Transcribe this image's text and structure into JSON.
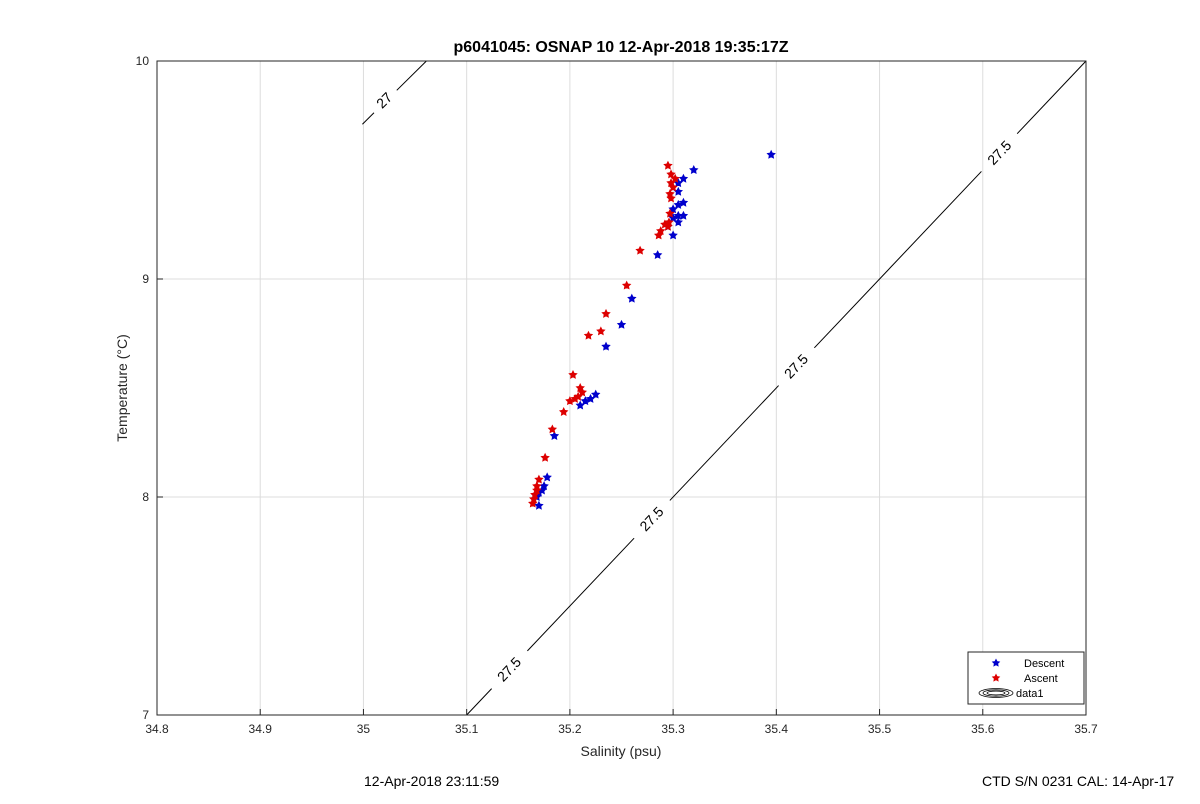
{
  "chart_data": {
    "type": "scatter",
    "title": "p6041045: OSNAP 10 12-Apr-2018 19:35:17Z",
    "xlabel": "Salinity (psu)",
    "ylabel": "Temperature (°C)",
    "xlim": [
      34.8,
      35.7
    ],
    "ylim": [
      7,
      10
    ],
    "x_ticks": [
      "34.8",
      "34.9",
      "35",
      "35.1",
      "35.2",
      "35.3",
      "35.4",
      "35.5",
      "35.6",
      "35.7"
    ],
    "y_ticks": [
      "7",
      "8",
      "9",
      "10"
    ],
    "grid": true,
    "legend_position": "bottom-right",
    "series": [
      {
        "name": "Descent",
        "color": "#0000cc",
        "points": [
          [
            35.395,
            9.57
          ],
          [
            35.32,
            9.5
          ],
          [
            35.31,
            9.46
          ],
          [
            35.305,
            9.44
          ],
          [
            35.305,
            9.4
          ],
          [
            35.31,
            9.35
          ],
          [
            35.305,
            9.34
          ],
          [
            35.3,
            9.32
          ],
          [
            35.31,
            9.29
          ],
          [
            35.305,
            9.29
          ],
          [
            35.3,
            9.28
          ],
          [
            35.305,
            9.26
          ],
          [
            35.295,
            9.24
          ],
          [
            35.3,
            9.2
          ],
          [
            35.285,
            9.11
          ],
          [
            35.26,
            8.91
          ],
          [
            35.25,
            8.79
          ],
          [
            35.235,
            8.69
          ],
          [
            35.225,
            8.47
          ],
          [
            35.22,
            8.45
          ],
          [
            35.215,
            8.44
          ],
          [
            35.21,
            8.42
          ],
          [
            35.185,
            8.28
          ],
          [
            35.178,
            8.09
          ],
          [
            35.175,
            8.05
          ],
          [
            35.173,
            8.03
          ],
          [
            35.17,
            8.02
          ],
          [
            35.168,
            8.0
          ],
          [
            35.17,
            7.96
          ]
        ]
      },
      {
        "name": "Ascent",
        "color": "#dd0000",
        "points": [
          [
            35.295,
            9.52
          ],
          [
            35.298,
            9.48
          ],
          [
            35.302,
            9.46
          ],
          [
            35.298,
            9.44
          ],
          [
            35.3,
            9.42
          ],
          [
            35.297,
            9.39
          ],
          [
            35.298,
            9.37
          ],
          [
            35.297,
            9.3
          ],
          [
            35.296,
            9.26
          ],
          [
            35.292,
            9.25
          ],
          [
            35.295,
            9.24
          ],
          [
            35.288,
            9.22
          ],
          [
            35.286,
            9.2
          ],
          [
            35.268,
            9.13
          ],
          [
            35.255,
            8.97
          ],
          [
            35.235,
            8.84
          ],
          [
            35.23,
            8.76
          ],
          [
            35.218,
            8.74
          ],
          [
            35.203,
            8.56
          ],
          [
            35.21,
            8.5
          ],
          [
            35.212,
            8.48
          ],
          [
            35.208,
            8.46
          ],
          [
            35.205,
            8.45
          ],
          [
            35.2,
            8.44
          ],
          [
            35.194,
            8.39
          ],
          [
            35.183,
            8.31
          ],
          [
            35.176,
            8.18
          ],
          [
            35.17,
            8.08
          ],
          [
            35.168,
            8.05
          ],
          [
            35.168,
            8.03
          ],
          [
            35.166,
            8.01
          ],
          [
            35.165,
            7.99
          ],
          [
            35.164,
            7.97
          ]
        ]
      },
      {
        "name": "data1",
        "color": "#000000"
      }
    ],
    "contours": [
      {
        "label": "27",
        "line": [
          [
            34.999,
            9.71
          ],
          [
            35.061,
            10.0
          ]
        ],
        "labels_at": [
          [
            35.02,
            9.82
          ]
        ]
      },
      {
        "label": "27.5",
        "line": [
          [
            35.1,
            7.0
          ],
          [
            35.7,
            10.0
          ]
        ],
        "labels_at": [
          [
            35.141,
            7.21
          ],
          [
            35.279,
            7.9
          ],
          [
            35.419,
            8.6
          ],
          [
            35.616,
            9.58
          ]
        ]
      }
    ]
  },
  "footer": {
    "left": "12-Apr-2018 23:11:59",
    "right": "CTD S/N 0231  CAL: 14-Apr-17"
  }
}
